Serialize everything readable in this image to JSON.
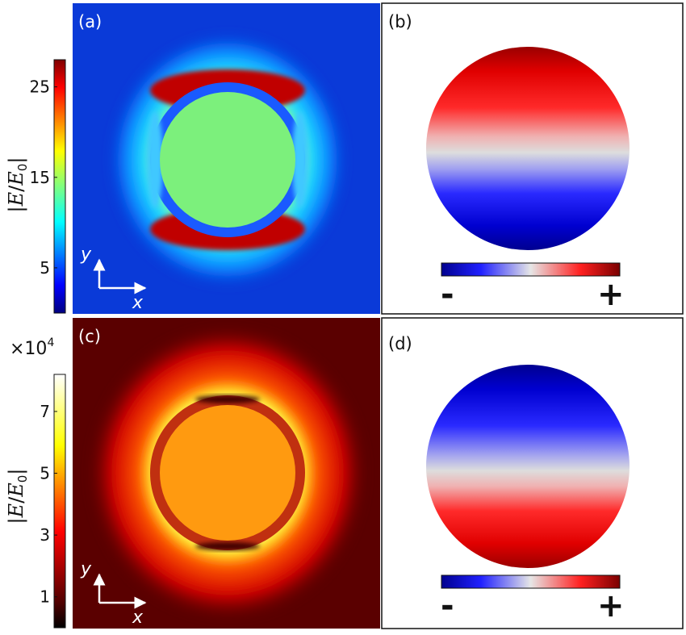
{
  "panels": {
    "a": {
      "label": "(a)",
      "colormap": "jet",
      "axes": {
        "y": "y",
        "x": "x"
      }
    },
    "b": {
      "label": "(b)",
      "charge_bar": {
        "minus": "-",
        "plus": "+"
      },
      "polarity": "positive top, negative bottom"
    },
    "c": {
      "label": "(c)",
      "colormap": "hot",
      "axes": {
        "y": "y",
        "x": "x"
      }
    },
    "d": {
      "label": "(d)",
      "charge_bar": {
        "minus": "-",
        "plus": "+"
      },
      "polarity": "negative top, positive bottom"
    }
  },
  "colorbars": {
    "top": {
      "label": "|E/E0|",
      "label_parts": {
        "bar_left": "|",
        "E": "E",
        "slash": "/",
        "E0": "E",
        "sub": "0",
        "bar_right": "|"
      },
      "ticks": [
        "25",
        "15",
        "5"
      ],
      "tick_values": [
        25,
        15,
        5
      ],
      "range": [
        0,
        28
      ]
    },
    "bottom": {
      "multiplier": "×10",
      "exponent": "4",
      "label": "|E/E0|",
      "label_parts": {
        "bar_left": "|",
        "E": "E",
        "slash": "/",
        "E0": "E",
        "sub": "0",
        "bar_right": "|"
      },
      "ticks": [
        "7",
        "5",
        "3",
        "1"
      ],
      "tick_values": [
        7,
        5,
        3,
        1
      ],
      "range": [
        0,
        8.2
      ]
    }
  },
  "colors": {
    "jet_green": "#7cf07c",
    "hot_orange": "#ff9a10",
    "charge_red": "#e00000",
    "charge_blue": "#1818e0",
    "frame": "#111111"
  }
}
